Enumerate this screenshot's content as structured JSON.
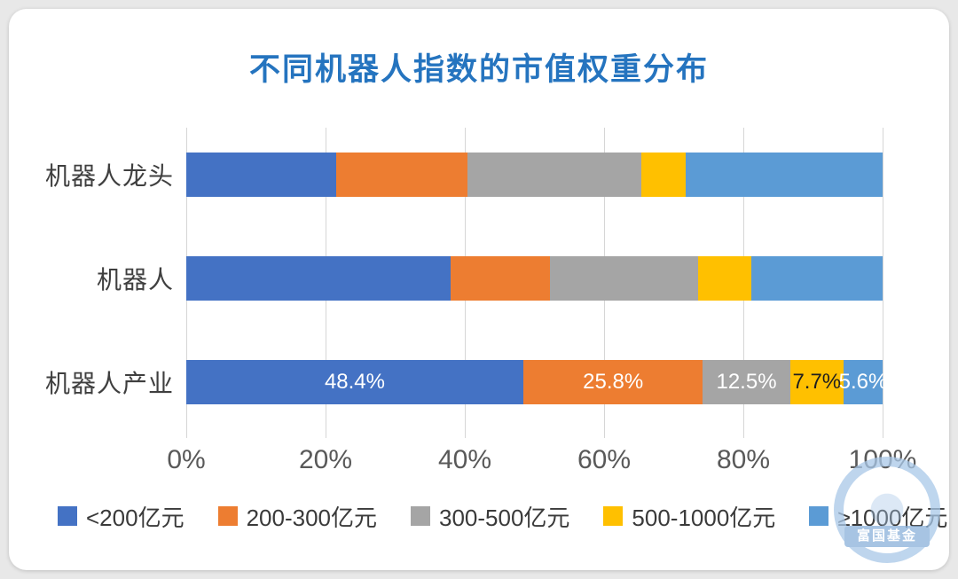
{
  "chart_data": {
    "type": "bar",
    "stacked": true,
    "orientation": "horizontal",
    "title": "不同机器人指数的市值权重分布",
    "title_color": "#2574bf",
    "categories": [
      "机器人龙头",
      "机器人",
      "机器人产业"
    ],
    "series": [
      {
        "name": "<200亿元",
        "color": "#4472C4",
        "values": [
          21.5,
          38.0,
          48.4
        ],
        "labels": [
          "",
          "",
          "48.4%"
        ],
        "label_color": "#ffffff"
      },
      {
        "name": "200-300亿元",
        "color": "#ED7D31",
        "values": [
          18.9,
          14.2,
          25.8
        ],
        "labels": [
          "",
          "",
          "25.8%"
        ],
        "label_color": "#ffffff"
      },
      {
        "name": "300-500亿元",
        "color": "#A5A5A5",
        "values": [
          24.9,
          21.3,
          12.5
        ],
        "labels": [
          "",
          "",
          "12.5%"
        ],
        "label_color": "#ffffff"
      },
      {
        "name": "500-1000亿元",
        "color": "#FFC000",
        "values": [
          6.4,
          7.6,
          7.7
        ],
        "labels": [
          "",
          "",
          "7.7%"
        ],
        "label_color": "#1f1f1f"
      },
      {
        "name": "≥1000亿元",
        "color": "#5B9BD5",
        "values": [
          28.3,
          18.9,
          5.6
        ],
        "labels": [
          "",
          "",
          "5.6%"
        ],
        "label_color": "#ffffff"
      }
    ],
    "x_ticks": [
      "0%",
      "20%",
      "40%",
      "60%",
      "80%",
      "100%"
    ],
    "xlim": [
      0,
      100
    ],
    "grid": true,
    "legend_position": "bottom"
  },
  "watermark": {
    "text": "富国基金"
  }
}
